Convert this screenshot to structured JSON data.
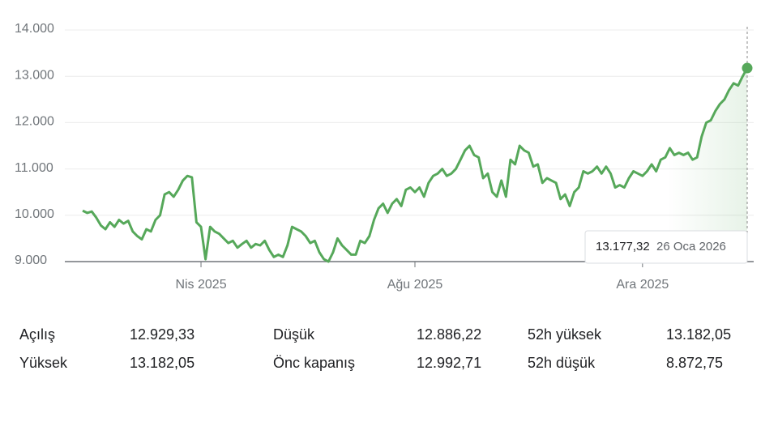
{
  "chart_data": {
    "type": "line",
    "series": [
      {
        "color": "#56a85a",
        "values": [
          10100,
          10050,
          10080,
          9950,
          9780,
          9700,
          9850,
          9750,
          9900,
          9820,
          9880,
          9650,
          9550,
          9480,
          9700,
          9650,
          9900,
          10000,
          10450,
          10500,
          10400,
          10550,
          10750,
          10850,
          10820,
          9850,
          9750,
          9050,
          9750,
          9650,
          9600,
          9500,
          9400,
          9450,
          9300,
          9380,
          9450,
          9300,
          9380,
          9350,
          9450,
          9250,
          9100,
          9150,
          9100,
          9350,
          9750,
          9700,
          9650,
          9550,
          9400,
          9450,
          9200,
          9050,
          9000,
          9200,
          9500,
          9350,
          9250,
          9150,
          9150,
          9450,
          9400,
          9550,
          9900,
          10150,
          10250,
          10050,
          10250,
          10350,
          10200,
          10550,
          10600,
          10500,
          10600,
          10400,
          10700,
          10850,
          10900,
          11000,
          10850,
          10900,
          11000,
          11200,
          11400,
          11500,
          11300,
          11250,
          10800,
          10900,
          10500,
          10400,
          10750,
          10400,
          11200,
          11100,
          11500,
          11400,
          11350,
          11050,
          11100,
          10700,
          10800,
          10750,
          10700,
          10350,
          10450,
          10200,
          10500,
          10600,
          10950,
          10900,
          10950,
          11050,
          10900,
          11050,
          10900,
          10600,
          10650,
          10600,
          10800,
          10950,
          10900,
          10850,
          10950,
          11100,
          10950,
          11200,
          11250,
          11450,
          11300,
          11350,
          11300,
          11350,
          11200,
          11250,
          11700,
          12000,
          12050,
          12250,
          12400,
          12500,
          12700,
          12850,
          12800,
          13000,
          13177.32
        ]
      }
    ],
    "xlim": [
      0,
      146
    ],
    "xticks": [
      {
        "value": 26,
        "label": "Nis 2025"
      },
      {
        "value": 73,
        "label": "Ağu 2025"
      },
      {
        "value": 123,
        "label": "Ara 2025"
      }
    ],
    "ylim": [
      9000,
      14000
    ],
    "yticks": [
      {
        "value": 9000,
        "label": "9.000"
      },
      {
        "value": 10000,
        "label": "10.000"
      },
      {
        "value": 11000,
        "label": "11.000"
      },
      {
        "value": 12000,
        "label": "12.000"
      },
      {
        "value": 13000,
        "label": "13.000"
      },
      {
        "value": 14000,
        "label": "14.000"
      }
    ],
    "grid": true,
    "tooltip": {
      "value": "13.177,32",
      "date": "26 Oca 2026"
    }
  },
  "stats": {
    "rows": [
      [
        "Açılış",
        "12.929,33",
        "Düşük",
        "12.886,22",
        "52h yüksek",
        "13.182,05"
      ],
      [
        "Yüksek",
        "13.182,05",
        "Önc kapanış",
        "12.992,71",
        "52h düşük",
        "8.872,75"
      ]
    ]
  }
}
